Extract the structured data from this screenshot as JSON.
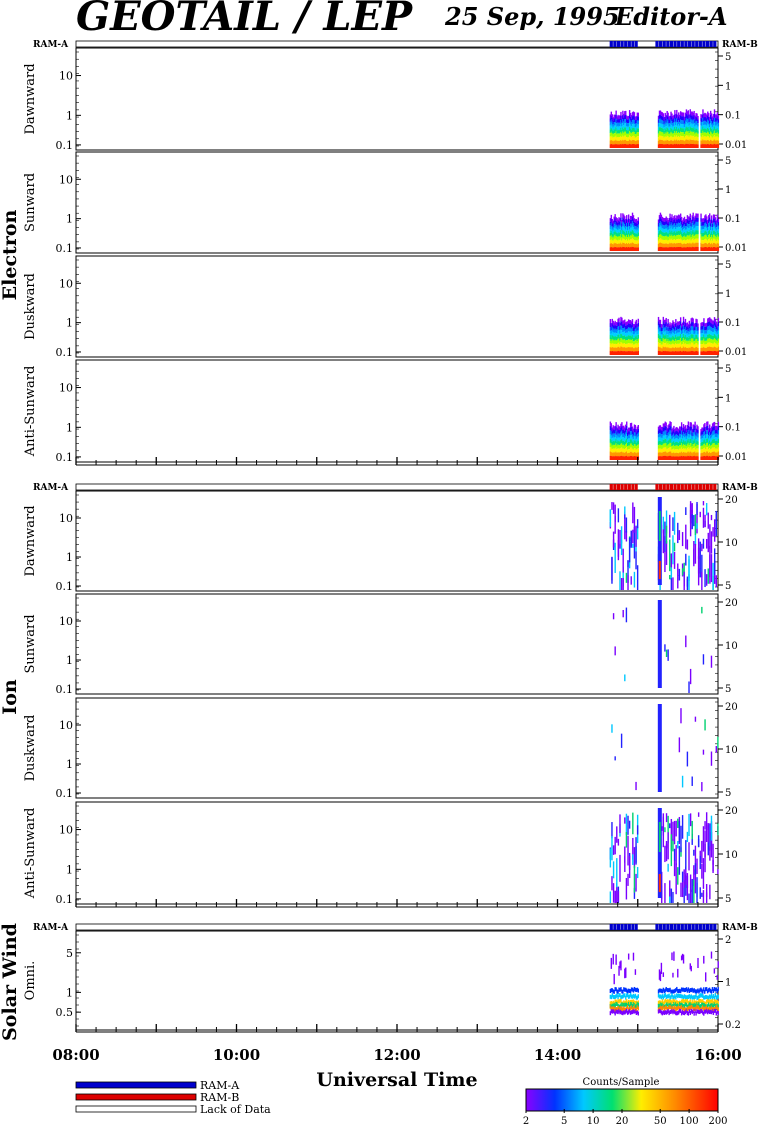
{
  "header": {
    "title": "GEOTAIL / LEP",
    "date": "25 Sep, 1995",
    "editor": "Editor-A"
  },
  "colors": {
    "ram_a": "#0000cc",
    "ram_b": "#dd0000",
    "lack": "#ffffff"
  },
  "chart_data": {
    "type": "heatmap",
    "xlabel": "Universal Time",
    "x_ticks": [
      "08:00",
      "10:00",
      "12:00",
      "14:00",
      "16:00"
    ],
    "x_range_hours": [
      8,
      16
    ],
    "sections": [
      {
        "name": "Electron",
        "ram_left": "RAM-A",
        "ram_right": "RAM-B",
        "ram_segments": [
          {
            "start": 14.65,
            "end": 15.0,
            "mode": "ram_a"
          },
          {
            "start": 15.22,
            "end": 15.98,
            "mode": "ram_a"
          }
        ],
        "panels": [
          {
            "label": "Dawnward",
            "y_left_ticks": [
              "10",
              "1",
              "0.1"
            ],
            "y_right_ticks": [
              "5",
              "1",
              "0.1",
              "0.01"
            ]
          },
          {
            "label": "Sunward",
            "y_left_ticks": [
              "10",
              "1",
              "0.1"
            ],
            "y_right_ticks": [
              "5",
              "1",
              "0.1",
              "0.01"
            ]
          },
          {
            "label": "Duskward",
            "y_left_ticks": [
              "10",
              "1",
              "0.1"
            ],
            "y_right_ticks": [
              "5",
              "1",
              "0.1",
              "0.01"
            ]
          },
          {
            "label": "Anti-Sunward",
            "y_left_ticks": [
              "10",
              "1",
              "0.1"
            ],
            "y_right_ticks": [
              "5",
              "1",
              "0.1",
              "0.01"
            ]
          }
        ],
        "data_spans": [
          [
            14.65,
            15.0
          ],
          [
            15.25,
            15.75
          ],
          [
            15.78,
            16.0
          ]
        ]
      },
      {
        "name": "Ion",
        "ram_left": "RAM-A",
        "ram_right": "RAM-B",
        "ram_segments": [
          {
            "start": 14.65,
            "end": 15.0,
            "mode": "ram_b"
          },
          {
            "start": 15.22,
            "end": 15.98,
            "mode": "ram_b"
          }
        ],
        "panels": [
          {
            "label": "Dawnward",
            "y_left_ticks": [
              "10",
              "1",
              "0.1"
            ],
            "y_right_ticks": [
              "20",
              "10",
              "5"
            ]
          },
          {
            "label": "Sunward",
            "y_left_ticks": [
              "10",
              "1",
              "0.1"
            ],
            "y_right_ticks": [
              "20",
              "10",
              "5"
            ]
          },
          {
            "label": "Duskward",
            "y_left_ticks": [
              "10",
              "1",
              "0.1"
            ],
            "y_right_ticks": [
              "20",
              "10",
              "5"
            ]
          },
          {
            "label": "Anti-Sunward",
            "y_left_ticks": [
              "10",
              "1",
              "0.1"
            ],
            "y_right_ticks": [
              "20",
              "10",
              "5"
            ]
          }
        ],
        "data_spans": [
          [
            14.65,
            15.0
          ],
          [
            15.25,
            16.0
          ]
        ]
      },
      {
        "name": "Solar Wind",
        "ram_left": "RAM-A",
        "ram_right": "RAM-B",
        "ram_segments": [
          {
            "start": 14.65,
            "end": 15.0,
            "mode": "ram_a"
          },
          {
            "start": 15.22,
            "end": 15.98,
            "mode": "ram_a"
          }
        ],
        "panels": [
          {
            "label": "Omni.",
            "y_left_ticks": [
              "5",
              "1",
              "0.5"
            ],
            "y_right_ticks": [
              "2",
              "1",
              "0.2"
            ]
          }
        ],
        "data_spans": [
          [
            14.65,
            15.0
          ],
          [
            15.25,
            16.0
          ]
        ]
      }
    ],
    "legend": [
      {
        "label": "RAM-A",
        "color": "#0000cc"
      },
      {
        "label": "RAM-B",
        "color": "#dd0000"
      },
      {
        "label": "Lack of Data",
        "color": "#ffffff"
      }
    ],
    "colorbar": {
      "title": "Counts/Sample",
      "ticks": [
        "2",
        "5",
        "10",
        "20",
        "50",
        "100",
        "200"
      ],
      "scale": "log"
    }
  }
}
